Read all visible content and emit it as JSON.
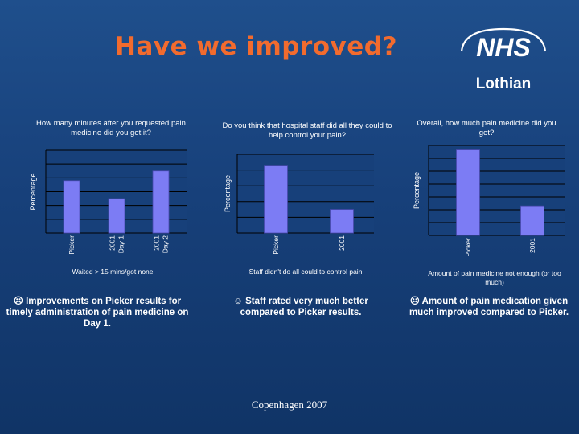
{
  "slide": {
    "title": "Have we improved?",
    "logo_top": "NHS",
    "logo_bottom": "Lothian",
    "footer": "Copenhagen 2007",
    "accent_color": "#f26b2e",
    "background_color": "#17407a"
  },
  "charts": [
    {
      "question": "How many minutes after you requested pain medicine did you get it?",
      "note": "Waited > 15 mins/got none",
      "summary": "☹ Improvements on Picker results for timely administration of pain medicine on Day 1.",
      "summary_icon": "sad-face-icon"
    },
    {
      "question": "Do you think that hospital staff did all they could to help control your pain?",
      "note": "Staff didn't do all could to control pain",
      "summary": "☺ Staff rated very much better compared to Picker results.",
      "summary_icon": "smiley-face-icon"
    },
    {
      "question": "Overall, how much pain medicine did you get?",
      "note": "Amount of pain medicine not enough (or too much)",
      "summary": "☹ Amount of pain medication given much improved compared to Picker.",
      "summary_icon": "sad-face-icon"
    }
  ],
  "chart_data": [
    {
      "type": "bar",
      "title": "How many minutes after you requested pain medicine did you get it?",
      "ylabel": "Percentage",
      "xlabel": "Waited > 15 mins/got none",
      "categories": [
        "Picker",
        "2001 Day 1",
        "2001 Day 2"
      ],
      "values": [
        19,
        12.5,
        22.5
      ],
      "ylim": [
        0,
        30
      ],
      "yticks": [
        "",
        "",
        "",
        "",
        "",
        "",
        ""
      ],
      "bar_color": "#7c7cf4",
      "grid": true
    },
    {
      "type": "bar",
      "title": "Do you think that hospital staff did all they could to help control your pain?",
      "ylabel": "Percentage",
      "xlabel": "Staff didn't do all could to control pain",
      "categories": [
        "Picker",
        "2001"
      ],
      "values": [
        21.5,
        7.5
      ],
      "ylim": [
        0,
        25
      ],
      "yticks": [
        "",
        "",
        "",
        "",
        "",
        ""
      ],
      "bar_color": "#7c7cf4",
      "grid": true
    },
    {
      "type": "bar",
      "title": "Overall, how much pain medicine did you get?",
      "ylabel": "Percentage",
      "xlabel": "Amount of pain medicine not enough (or too much)",
      "categories": [
        "Picker",
        "2001"
      ],
      "values": [
        13.3,
        4.6
      ],
      "ylim": [
        0,
        14
      ],
      "yticks": [
        "",
        "",
        "",
        "",
        "",
        "",
        "",
        ""
      ],
      "bar_color": "#7c7cf4",
      "grid": true
    }
  ]
}
